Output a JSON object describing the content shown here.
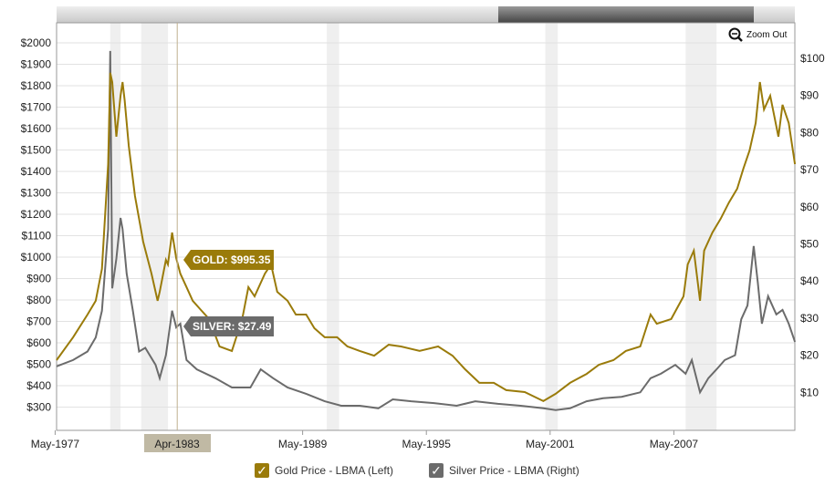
{
  "zoom_out_label": "Zoom Out",
  "tooltip": {
    "gold": "GOLD: $995.35",
    "silver": "SILVER: $27.49",
    "date": "Apr-1983",
    "date_value": 1983.25
  },
  "colors": {
    "gold": "#9a7b0a",
    "silver": "#6b6b6b",
    "recession": "#efefef"
  },
  "chart_data": {
    "type": "line",
    "left_axis": {
      "ticks": [
        "$2000",
        "$1900",
        "$1800",
        "$1700",
        "$1600",
        "$1500",
        "$1400",
        "$1300",
        "$1200",
        "$1100",
        "$1000",
        "$900",
        "$800",
        "$700",
        "$600",
        "$500",
        "$400",
        "$300"
      ],
      "range": [
        300,
        2000
      ]
    },
    "right_axis": {
      "ticks": [
        "$100",
        "$90",
        "$80",
        "$70",
        "$60",
        "$50",
        "$40",
        "$30",
        "$20",
        "$10"
      ],
      "range": [
        0,
        100
      ]
    },
    "x_ticks": [
      {
        "label": "May-1977",
        "year": 1977.33
      },
      {
        "label": "May-1989",
        "year": 1989.33
      },
      {
        "label": "May-1995",
        "year": 1995.33
      },
      {
        "label": "May-2001",
        "year": 2001.33
      },
      {
        "label": "May-2007",
        "year": 2007.33
      }
    ],
    "recessions": [
      [
        1980.0,
        1980.5
      ],
      [
        1981.5,
        1982.8
      ],
      [
        1990.5,
        1991.1
      ],
      [
        2001.1,
        2001.7
      ],
      [
        2007.9,
        2009.4
      ]
    ],
    "series": [
      {
        "name": "Gold Price - LBMA (Left)",
        "axis": "left",
        "points": [
          [
            1977.4,
            519
          ],
          [
            1978.2,
            626
          ],
          [
            1978.9,
            732
          ],
          [
            1979.3,
            796
          ],
          [
            1979.6,
            945
          ],
          [
            1979.9,
            1434
          ],
          [
            1980.0,
            1860
          ],
          [
            1980.1,
            1817
          ],
          [
            1980.3,
            1562
          ],
          [
            1980.5,
            1753
          ],
          [
            1980.6,
            1817
          ],
          [
            1980.7,
            1732
          ],
          [
            1980.9,
            1519
          ],
          [
            1981.2,
            1285
          ],
          [
            1981.4,
            1179
          ],
          [
            1981.6,
            1072
          ],
          [
            1982.0,
            923
          ],
          [
            1982.3,
            796
          ],
          [
            1982.4,
            838
          ],
          [
            1982.7,
            987
          ],
          [
            1982.8,
            966
          ],
          [
            1983.0,
            1115
          ],
          [
            1983.2,
            995
          ],
          [
            1983.4,
            923
          ],
          [
            1983.7,
            860
          ],
          [
            1984.0,
            796
          ],
          [
            1984.4,
            753
          ],
          [
            1984.8,
            711
          ],
          [
            1985.3,
            583
          ],
          [
            1985.9,
            562
          ],
          [
            1986.4,
            711
          ],
          [
            1986.7,
            860
          ],
          [
            1987.0,
            817
          ],
          [
            1987.5,
            923
          ],
          [
            1987.8,
            966
          ],
          [
            1988.1,
            838
          ],
          [
            1988.6,
            796
          ],
          [
            1989.0,
            732
          ],
          [
            1989.5,
            732
          ],
          [
            1989.9,
            668
          ],
          [
            1990.4,
            626
          ],
          [
            1991.0,
            626
          ],
          [
            1991.5,
            583
          ],
          [
            1992.1,
            562
          ],
          [
            1992.8,
            540
          ],
          [
            1993.5,
            591
          ],
          [
            1994.1,
            583
          ],
          [
            1995.0,
            562
          ],
          [
            1995.9,
            583
          ],
          [
            1996.6,
            540
          ],
          [
            1997.2,
            477
          ],
          [
            1997.9,
            413
          ],
          [
            1998.6,
            413
          ],
          [
            1999.2,
            379
          ],
          [
            2000.1,
            370
          ],
          [
            2001.0,
            328
          ],
          [
            2001.6,
            362
          ],
          [
            2002.3,
            413
          ],
          [
            2003.1,
            455
          ],
          [
            2003.7,
            498
          ],
          [
            2004.4,
            519
          ],
          [
            2005.0,
            562
          ],
          [
            2005.7,
            583
          ],
          [
            2006.2,
            732
          ],
          [
            2006.5,
            689
          ],
          [
            2007.2,
            711
          ],
          [
            2007.8,
            817
          ],
          [
            2008.0,
            966
          ],
          [
            2008.3,
            1030
          ],
          [
            2008.6,
            796
          ],
          [
            2008.8,
            1030
          ],
          [
            2009.2,
            1115
          ],
          [
            2009.6,
            1179
          ],
          [
            2010.0,
            1255
          ],
          [
            2010.4,
            1319
          ],
          [
            2010.7,
            1413
          ],
          [
            2011.0,
            1498
          ],
          [
            2011.3,
            1626
          ],
          [
            2011.5,
            1817
          ],
          [
            2011.7,
            1689
          ],
          [
            2012.0,
            1753
          ],
          [
            2012.4,
            1562
          ],
          [
            2012.6,
            1711
          ],
          [
            2012.9,
            1626
          ],
          [
            2013.2,
            1434
          ]
        ]
      },
      {
        "name": "Silver Price - LBMA (Right)",
        "axis": "right",
        "points": [
          [
            1977.4,
            17
          ],
          [
            1978.2,
            18.7
          ],
          [
            1978.9,
            21
          ],
          [
            1979.3,
            24.8
          ],
          [
            1979.6,
            32
          ],
          [
            1979.9,
            54
          ],
          [
            1980.0,
            102
          ],
          [
            1980.1,
            38
          ],
          [
            1980.3,
            46
          ],
          [
            1980.5,
            57
          ],
          [
            1980.6,
            54
          ],
          [
            1980.8,
            42
          ],
          [
            1981.1,
            32
          ],
          [
            1981.4,
            21
          ],
          [
            1981.7,
            22
          ],
          [
            1982.2,
            17.4
          ],
          [
            1982.4,
            13.8
          ],
          [
            1982.7,
            20
          ],
          [
            1983.0,
            32
          ],
          [
            1983.2,
            27.5
          ],
          [
            1983.4,
            28.5
          ],
          [
            1983.7,
            18.7
          ],
          [
            1984.2,
            16.2
          ],
          [
            1985.1,
            13.8
          ],
          [
            1985.9,
            11.3
          ],
          [
            1986.8,
            11.3
          ],
          [
            1987.3,
            16.2
          ],
          [
            1987.9,
            13.8
          ],
          [
            1988.6,
            11.3
          ],
          [
            1989.5,
            9.6
          ],
          [
            1990.4,
            7.6
          ],
          [
            1991.2,
            6.4
          ],
          [
            1992.1,
            6.4
          ],
          [
            1993.0,
            5.7
          ],
          [
            1993.7,
            8.1
          ],
          [
            1994.6,
            7.6
          ],
          [
            1995.7,
            7.1
          ],
          [
            1996.8,
            6.4
          ],
          [
            1997.7,
            7.6
          ],
          [
            1998.8,
            6.9
          ],
          [
            1999.9,
            6.4
          ],
          [
            2001.0,
            5.7
          ],
          [
            2001.6,
            5.2
          ],
          [
            2002.3,
            5.7
          ],
          [
            2003.1,
            7.6
          ],
          [
            2003.9,
            8.4
          ],
          [
            2004.8,
            8.8
          ],
          [
            2005.7,
            10
          ],
          [
            2006.2,
            13.8
          ],
          [
            2006.7,
            15
          ],
          [
            2007.4,
            17.4
          ],
          [
            2007.9,
            15
          ],
          [
            2008.2,
            18.7
          ],
          [
            2008.6,
            10
          ],
          [
            2009.0,
            13.8
          ],
          [
            2009.4,
            16.2
          ],
          [
            2009.8,
            18.7
          ],
          [
            2010.3,
            20
          ],
          [
            2010.6,
            29.7
          ],
          [
            2010.9,
            33.4
          ],
          [
            2011.2,
            49.4
          ],
          [
            2011.4,
            39.6
          ],
          [
            2011.6,
            28.5
          ],
          [
            2011.9,
            35.9
          ],
          [
            2012.3,
            31
          ],
          [
            2012.6,
            32.2
          ],
          [
            2012.9,
            28.5
          ],
          [
            2013.2,
            23.6
          ]
        ]
      }
    ]
  }
}
